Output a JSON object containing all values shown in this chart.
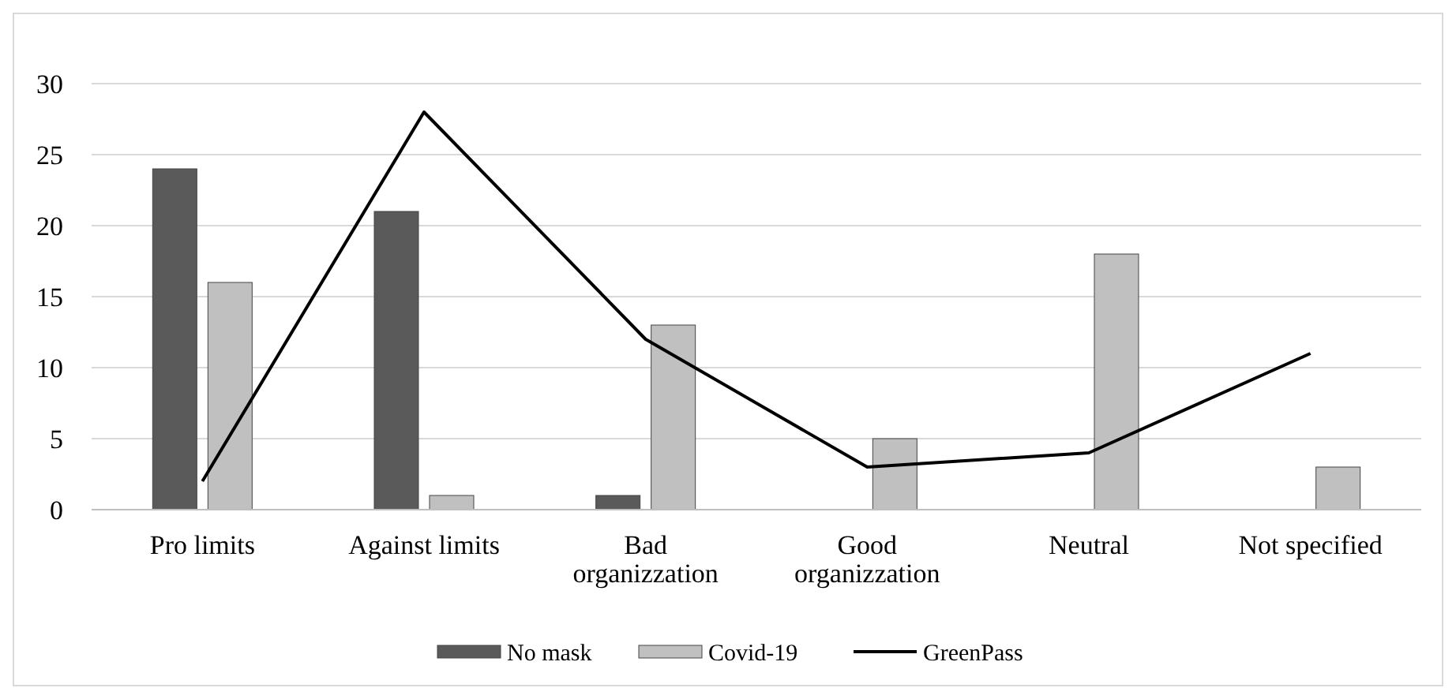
{
  "chart_data": {
    "type": "bar",
    "categories": [
      "Pro limits",
      "Against limits",
      "Bad organizzation",
      "Good organizzation",
      "Neutral",
      "Not specified"
    ],
    "series": [
      {
        "name": "No mask",
        "color": "#5a5a5a",
        "values": [
          24,
          21,
          1,
          0,
          0,
          0
        ]
      },
      {
        "name": "Covid-19",
        "color": "#c0c0c0",
        "values": [
          16,
          1,
          13,
          5,
          18,
          3
        ]
      },
      {
        "name": "GreenPass",
        "type": "line",
        "color": "#000000",
        "values": [
          2,
          28,
          12,
          3,
          4,
          11
        ]
      }
    ],
    "ylim": [
      0,
      30
    ],
    "yticks": [
      0,
      5,
      10,
      15,
      20,
      25,
      30
    ],
    "grid": "y",
    "legend": "bottom",
    "line_style": "solid"
  }
}
